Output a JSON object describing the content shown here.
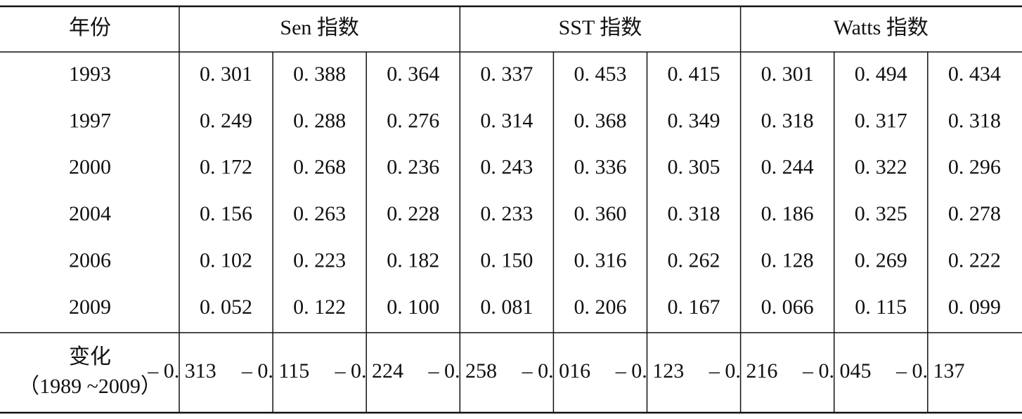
{
  "table": {
    "header": [
      "年份",
      "Sen 指数",
      "SST 指数",
      "Watts 指数"
    ],
    "rows": [
      [
        "1993",
        "0. 301",
        "0. 388",
        "0. 364",
        "0. 337",
        "0. 453",
        "0. 415",
        "0. 301",
        "0. 494",
        "0. 434"
      ],
      [
        "1997",
        "0. 249",
        "0. 288",
        "0. 276",
        "0. 314",
        "0. 368",
        "0. 349",
        "0. 318",
        "0. 317",
        "0. 318"
      ],
      [
        "2000",
        "0. 172",
        "0. 268",
        "0. 236",
        "0. 243",
        "0. 336",
        "0. 305",
        "0. 244",
        "0. 322",
        "0. 296"
      ],
      [
        "2004",
        "0. 156",
        "0. 263",
        "0. 228",
        "0. 233",
        "0. 360",
        "0. 318",
        "0. 186",
        "0. 325",
        "0. 278"
      ],
      [
        "2006",
        "0. 102",
        "0. 223",
        "0. 182",
        "0. 150",
        "0. 316",
        "0. 262",
        "0. 128",
        "0. 269",
        "0. 222"
      ],
      [
        "2009",
        "0. 052",
        "0. 122",
        "0. 100",
        "0. 081",
        "0. 206",
        "0. 167",
        "0. 066",
        "0. 115",
        "0. 099"
      ]
    ],
    "change": {
      "label": [
        "变化",
        "（1989 ~2009）"
      ],
      "values": [
        "– 0. 313",
        "– 0. 115",
        "– 0. 224",
        "– 0. 258",
        "– 0. 016",
        "– 0. 123",
        "– 0. 216",
        "– 0. 045",
        "– 0. 137"
      ]
    }
  }
}
